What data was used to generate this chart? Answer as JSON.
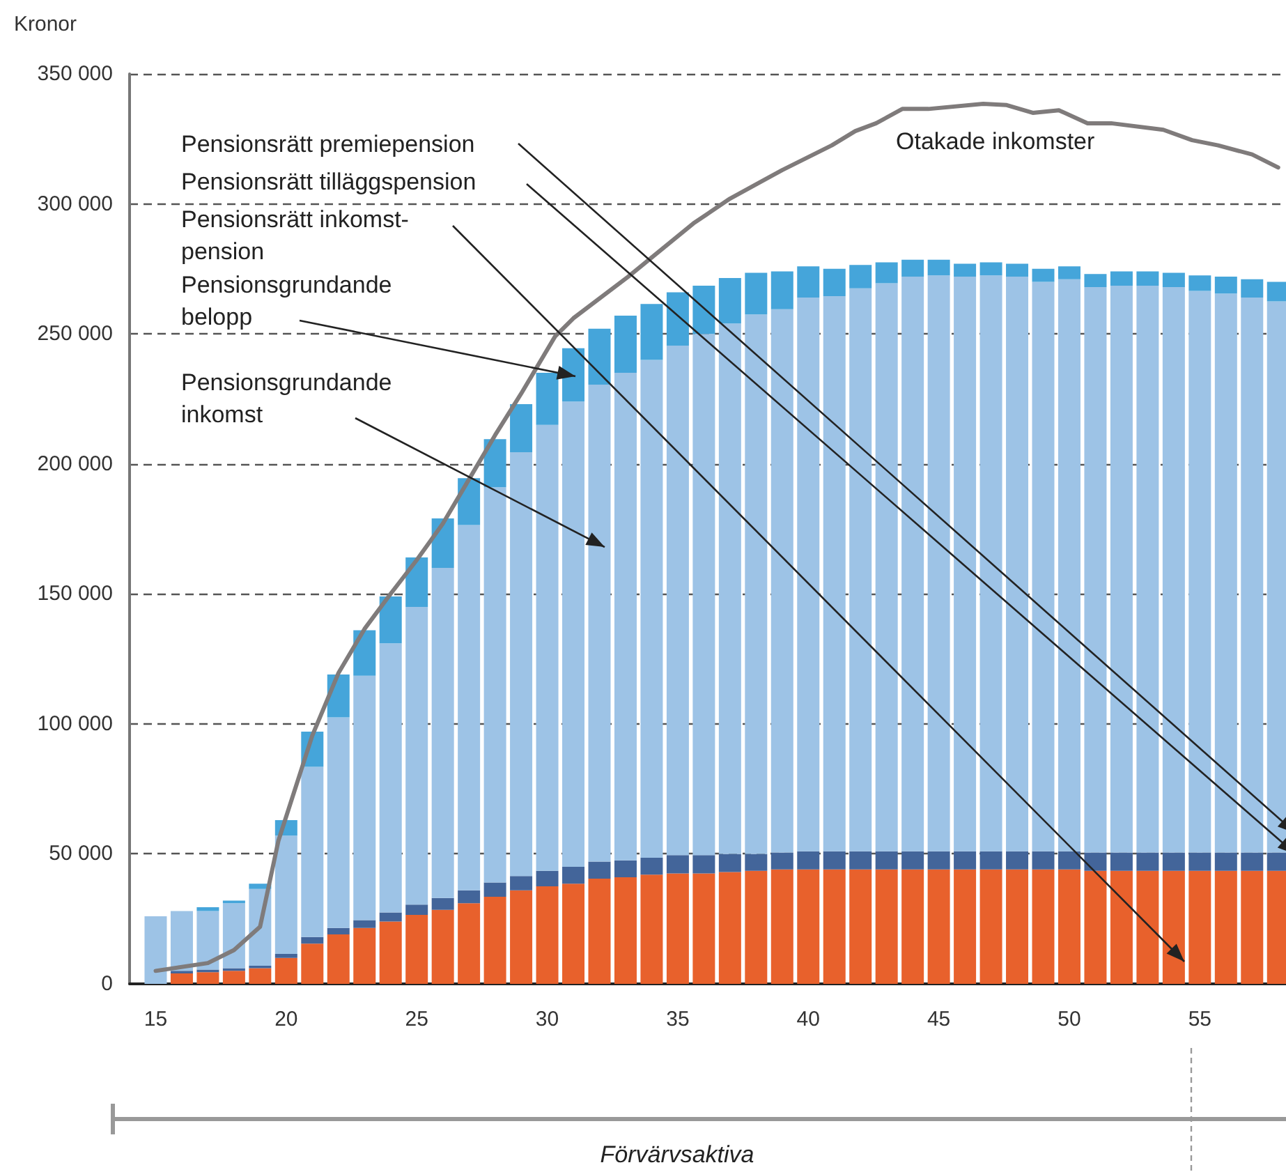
{
  "chart_data": {
    "type": "bar",
    "ylabel": "Kronor",
    "xlim": [
      14,
      58.3
    ],
    "xticks": [
      15,
      20,
      25,
      30,
      35,
      40,
      45,
      50,
      55
    ],
    "ylim": [
      0,
      350000
    ],
    "yticks": [
      {
        "value": 0,
        "label": "0"
      },
      {
        "value": 50000,
        "label": "50 000"
      },
      {
        "value": 100000,
        "label": "100 000"
      },
      {
        "value": 150000,
        "label": "150 000"
      },
      {
        "value": 200000,
        "label": "200 000"
      },
      {
        "value": 250000,
        "label": "250 000"
      },
      {
        "value": 300000,
        "label": "300 000"
      },
      {
        "value": 350000,
        "label": "350 000"
      }
    ],
    "grid": "y",
    "legend": false,
    "stacked": true,
    "marker": "none",
    "line_style": "solid",
    "x": [
      15,
      16,
      17,
      18,
      19,
      20,
      21,
      22,
      23,
      24,
      25,
      26,
      27,
      28,
      29,
      30,
      31,
      32,
      33,
      34,
      35,
      36,
      37,
      38,
      39,
      40,
      41,
      42,
      43,
      44,
      45,
      46,
      47,
      48,
      49,
      50,
      51,
      52,
      53,
      54,
      55,
      56,
      57,
      58
    ],
    "series": [
      {
        "color": "#e8612c",
        "values": [
          null,
          4000,
          4500,
          5000,
          6000,
          10000,
          15500,
          19000,
          21500,
          24000,
          26500,
          28500,
          31000,
          33500,
          36000,
          37500,
          38500,
          40500,
          41000,
          42000,
          42500,
          42500,
          43000,
          43500,
          44000,
          44000,
          44000,
          44000,
          44000,
          44000,
          44000,
          44000,
          44000,
          44000,
          44000,
          44000,
          43500,
          43500,
          43500,
          43500,
          43500,
          43500,
          43500,
          43500
        ]
      },
      {
        "color": "#43659a",
        "values": [
          null,
          1000,
          1000,
          1000,
          1000,
          1500,
          2500,
          2500,
          3000,
          3500,
          4000,
          4500,
          5000,
          5500,
          5500,
          6000,
          6500,
          6500,
          6500,
          6500,
          7000,
          7000,
          7000,
          6500,
          6500,
          7000,
          7000,
          7000,
          7000,
          7000,
          7000,
          7000,
          7000,
          7000,
          7000,
          7000,
          7000,
          7000,
          7000,
          7000,
          7000,
          7000,
          7000,
          7000
        ]
      },
      {
        "color": "#9dc3e6",
        "values": [
          26000,
          23000,
          22500,
          25000,
          29500,
          45500,
          65500,
          81000,
          94000,
          103500,
          114500,
          127000,
          140500,
          152000,
          163000,
          171500,
          179000,
          183500,
          187500,
          191500,
          196000,
          200500,
          204000,
          207500,
          209000,
          213000,
          213500,
          216500,
          218500,
          221000,
          221500,
          221000,
          221500,
          221000,
          219000,
          220000,
          217500,
          218000,
          218000,
          217500,
          216000,
          215000,
          213500,
          212000
        ]
      },
      {
        "color": "#45a5da",
        "values": [
          null,
          null,
          1500,
          1000,
          2000,
          6000,
          13500,
          16500,
          17500,
          18000,
          19000,
          19000,
          18000,
          18500,
          18500,
          20000,
          20500,
          21500,
          22000,
          21500,
          20500,
          18500,
          17500,
          16000,
          14500,
          12000,
          10500,
          9000,
          8000,
          6500,
          6000,
          5000,
          5000,
          5000,
          5000,
          5000,
          5000,
          5500,
          5500,
          5500,
          6000,
          6500,
          7000,
          7500
        ]
      },
      {
        "type": "line",
        "color": "#7f7b7b",
        "x": [
          15,
          17,
          18,
          19,
          19.7,
          21,
          22,
          23,
          24,
          25,
          26,
          27,
          28,
          29,
          30.3,
          31,
          33.1,
          35.6,
          37,
          39,
          40.9,
          41.8,
          42.6,
          43.6,
          44.6,
          46.7,
          47.6,
          48.6,
          49.6,
          50.7,
          51.6,
          53.6,
          54.7,
          55.7,
          57,
          58
        ],
        "values": [
          5000,
          8000,
          13000,
          22000,
          55000,
          95500,
          119500,
          136500,
          150000,
          163000,
          177000,
          194000,
          211000,
          227000,
          249000,
          256000,
          272000,
          292500,
          302000,
          313000,
          322500,
          328000,
          331000,
          336500,
          336500,
          338500,
          338000,
          335000,
          336000,
          331000,
          331000,
          328500,
          324500,
          322500,
          319000,
          314000
        ]
      }
    ],
    "annotations": [
      "Pensionsrätt premiepension",
      "Pensionsrätt tilläggspension",
      "Pensionsrätt inkomst-\npension",
      "Pensionsgrundande\nbelopp",
      {
        "text": "Pensionsgrundande\ninkomst",
        "x": 32.2,
        "y": 168000
      },
      "Otakade inkomster",
      "Förvärvsaktiva"
    ]
  }
}
